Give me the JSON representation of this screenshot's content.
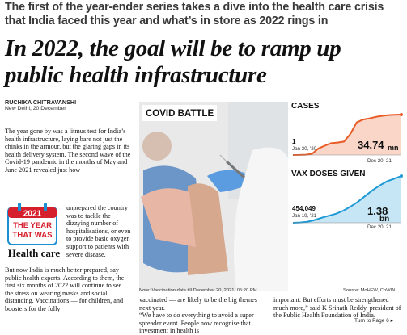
{
  "kicker": "The first of the year-ender series takes a dive into the health care crisis that India faced this year and what’s in store as 2022 rings in",
  "headline": "In 2022, the goal will be to ramp up public health infrastructure",
  "byline": {
    "author": "RUCHIKA CHITRAVANSHI",
    "dateline": "New Delhi, 20 December"
  },
  "article": {
    "col1_top": "The year gone by was a litmus test for India’s health infrastructure, laying bare not just the chinks in the armour, but the glaring gaps in its health delivery system. The second wave of the Covid-19 pandemic in the months of May and June 2021 revealed just how",
    "col1_wrap": "unprepared the country was to tackle the dizzying number of hospitalisations, or even to provide basic oxygen support to patients with severe disease.",
    "col1_bottom": "But now India is much better prepared, say public health experts. According to them, the first six months of 2022 will continue to see the stress on wearing masks and social distancing. Vaccinations — for children, and boosters for the fully",
    "col2": "vaccinated — are likely to be the big themes next year.\n“We have to do everything to avoid a super spreader event. People now recognise that investment in health is",
    "col3": "important. But efforts must be strengthened much more,” said K Srinath Reddy, president of the Public Health Foundation of India.",
    "turn": "Turn to Page 6 ▸"
  },
  "badge": {
    "year": "2021",
    "line1": "THE YEAR",
    "line2": "THAT WAS",
    "section": "Health care"
  },
  "covid_graphic": {
    "title": "COVID BATTLE",
    "note": "Note: Vaccination data till December 20, 2021, 05:20 PM",
    "source": "Source: MoHFW, CoWIN"
  },
  "chart_data": [
    {
      "type": "area",
      "title": "CASES",
      "start": {
        "value": "1",
        "date": "Jan 30, '20"
      },
      "end": {
        "value": "34.74",
        "unit": "mn",
        "date": "Dec 20, 21"
      },
      "series": [
        {
          "values": [
            0,
            0.1,
            0.3,
            1.0,
            5.6,
            8.0,
            10.2,
            10.7,
            11.5,
            18.0,
            28.0,
            30.5,
            31.5,
            32.8,
            33.7,
            34.3,
            34.6,
            34.74
          ]
        }
      ],
      "color": "#e85a24"
    },
    {
      "type": "area",
      "title": "VAX DOSES GIVEN",
      "start": {
        "value": "454,049",
        "date": "Jan 19, '21"
      },
      "end": {
        "value": "1.38",
        "unit": "bn",
        "date": "Dec 20, 21"
      },
      "series": [
        {
          "values": [
            0,
            0.01,
            0.03,
            0.08,
            0.15,
            0.21,
            0.27,
            0.36,
            0.48,
            0.62,
            0.79,
            0.96,
            1.1,
            1.22,
            1.3,
            1.38
          ]
        }
      ],
      "color": "#1d9ad6"
    }
  ]
}
